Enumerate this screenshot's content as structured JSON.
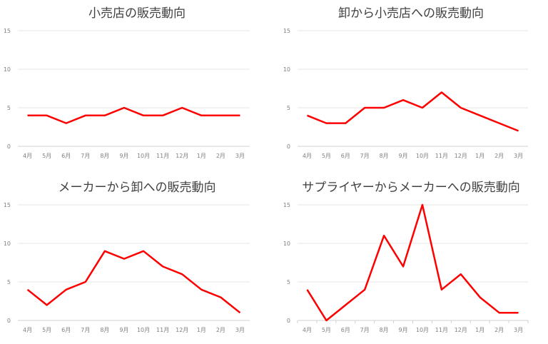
{
  "chart_data": [
    {
      "type": "line",
      "title": "小売店の販売動向",
      "categories": [
        "4月",
        "5月",
        "6月",
        "7月",
        "8月",
        "9月",
        "10月",
        "11月",
        "12月",
        "1月",
        "2月",
        "3月"
      ],
      "values": [
        4,
        4,
        3,
        4,
        4,
        5,
        4,
        4,
        5,
        4,
        4,
        4
      ],
      "ylim": [
        0,
        15
      ],
      "yticks": [
        0,
        5,
        10,
        15
      ],
      "grid": true,
      "color": "#ff0000"
    },
    {
      "type": "line",
      "title": "卸から小売店への販売動向",
      "categories": [
        "4月",
        "5月",
        "6月",
        "7月",
        "8月",
        "9月",
        "10月",
        "11月",
        "12月",
        "1月",
        "2月",
        "3月"
      ],
      "values": [
        4,
        3,
        3,
        5,
        5,
        6,
        5,
        7,
        5,
        4,
        3,
        2
      ],
      "ylim": [
        0,
        15
      ],
      "yticks": [
        0,
        5,
        10,
        15
      ],
      "grid": true,
      "color": "#ff0000"
    },
    {
      "type": "line",
      "title": "メーカーから卸への販売動向",
      "categories": [
        "4月",
        "5月",
        "6月",
        "7月",
        "8月",
        "9月",
        "10月",
        "11月",
        "12月",
        "1月",
        "2月",
        "3月"
      ],
      "values": [
        4,
        2,
        4,
        5,
        9,
        8,
        9,
        7,
        6,
        4,
        3,
        1
      ],
      "ylim": [
        0,
        15
      ],
      "yticks": [
        0,
        5,
        10,
        15
      ],
      "grid": true,
      "color": "#ff0000"
    },
    {
      "type": "line",
      "title": "サプライヤーからメーカーへの販売動向",
      "categories": [
        "4月",
        "5月",
        "6月",
        "7月",
        "8月",
        "9月",
        "10月",
        "11月",
        "12月",
        "1月",
        "2月",
        "3月"
      ],
      "values": [
        4,
        0,
        2,
        4,
        11,
        7,
        15,
        4,
        6,
        3,
        1,
        1
      ],
      "ylim": [
        0,
        15
      ],
      "yticks": [
        0,
        5,
        10,
        15
      ],
      "grid": true,
      "color": "#ff0000"
    }
  ]
}
